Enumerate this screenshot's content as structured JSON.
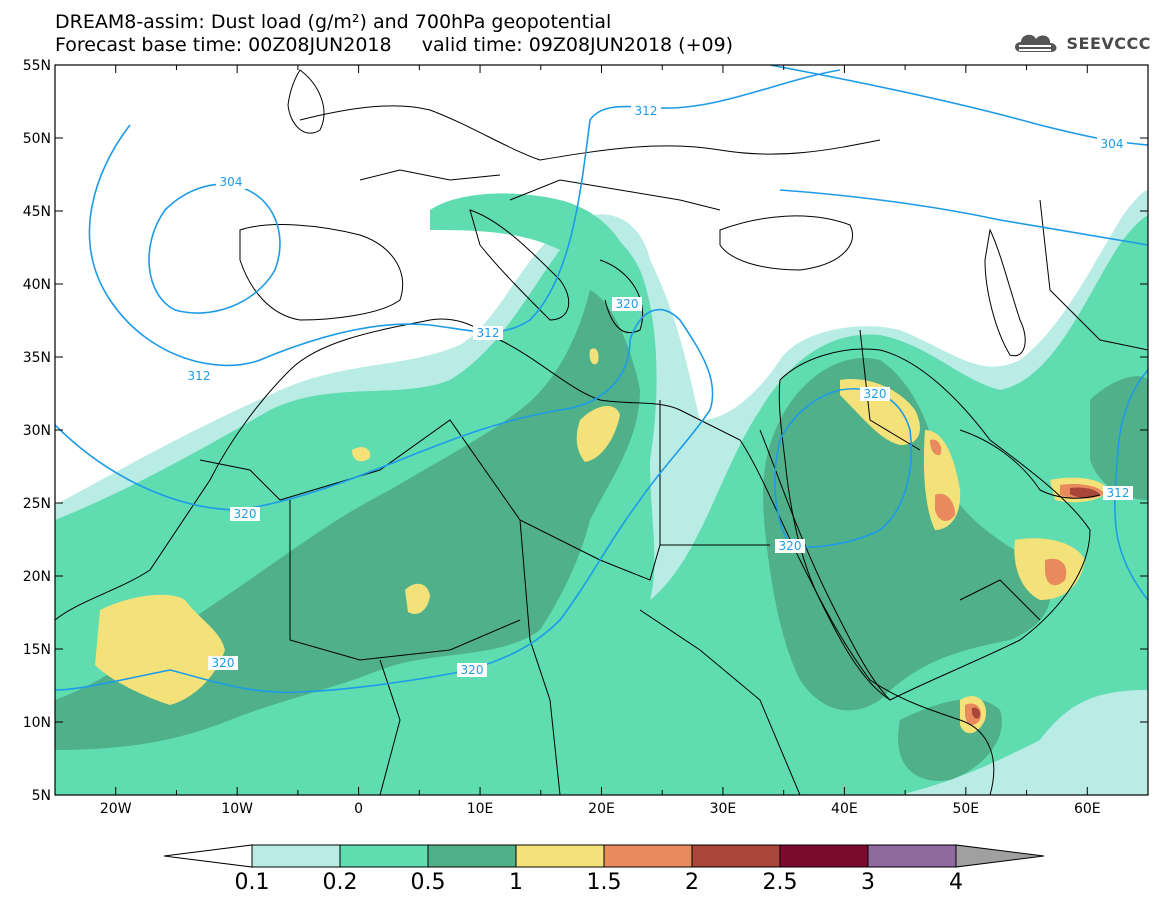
{
  "title": {
    "line1": "DREAM8-assim: Dust load (g/m²) and 700hPa geopotential",
    "line2": "Forecast base time: 00Z08JUN2018     valid time: 09Z08JUN2018 (+09)"
  },
  "logo": {
    "text": "SEEVCCC",
    "icon": "cloud-icon"
  },
  "axes": {
    "lon_ticks": [
      "20W",
      "10W",
      "0",
      "10E",
      "20E",
      "30E",
      "40E",
      "50E",
      "60E"
    ],
    "lat_ticks": [
      "55N",
      "50N",
      "45N",
      "40N",
      "35N",
      "30N",
      "25N",
      "20N",
      "15N",
      "10N",
      "5N"
    ],
    "lon_range": [
      -25,
      65
    ],
    "lat_range": [
      5,
      55
    ]
  },
  "colorbar": {
    "labels": [
      "0.1",
      "0.2",
      "0.5",
      "1",
      "1.5",
      "2",
      "2.5",
      "3",
      "4"
    ],
    "colors": [
      "#b8ece4",
      "#5fdcb0",
      "#4fb08a",
      "#f3e27a",
      "#e88a5e",
      "#a8463a",
      "#7a0a2e",
      "#8e6a9e"
    ],
    "under_color": "#ffffff",
    "over_color": "#a0a0a0"
  },
  "contours": {
    "color": "#1e9be8",
    "labels": [
      "304",
      "312",
      "304",
      "312",
      "312",
      "320",
      "320",
      "320",
      "320",
      "320",
      "312"
    ]
  }
}
